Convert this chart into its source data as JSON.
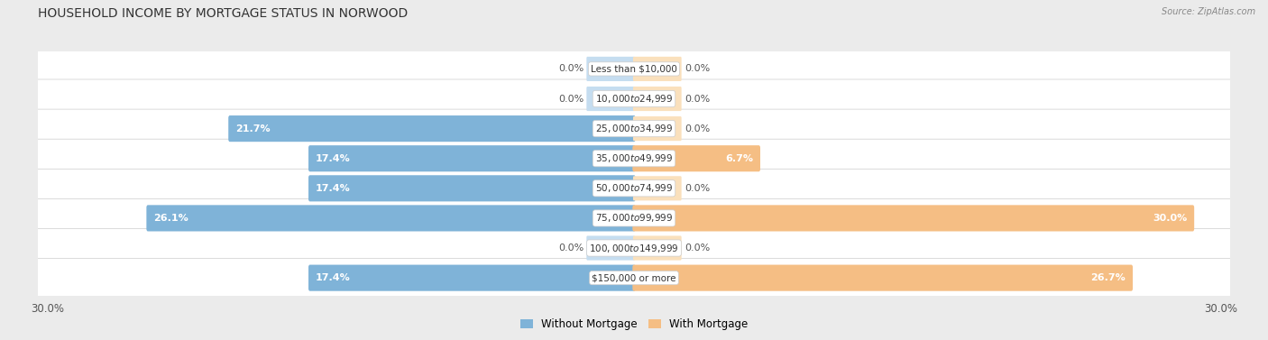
{
  "title": "HOUSEHOLD INCOME BY MORTGAGE STATUS IN NORWOOD",
  "source": "Source: ZipAtlas.com",
  "categories": [
    "Less than $10,000",
    "$10,000 to $24,999",
    "$25,000 to $34,999",
    "$35,000 to $49,999",
    "$50,000 to $74,999",
    "$75,000 to $99,999",
    "$100,000 to $149,999",
    "$150,000 or more"
  ],
  "without_mortgage": [
    0.0,
    0.0,
    21.7,
    17.4,
    17.4,
    26.1,
    0.0,
    17.4
  ],
  "with_mortgage": [
    0.0,
    0.0,
    0.0,
    6.7,
    0.0,
    30.0,
    0.0,
    26.7
  ],
  "max_val": 30.0,
  "color_without": "#7fb3d8",
  "color_with": "#f5be84",
  "color_without_faint": "#c5ddf0",
  "color_with_faint": "#fae0bc",
  "bg_color": "#ebebeb",
  "row_bg_light": "#f5f5f5",
  "row_bg_dark": "#e0e0e0",
  "title_fontsize": 10,
  "label_fontsize": 8,
  "axis_label_fontsize": 8.5,
  "legend_fontsize": 8.5,
  "cat_label_fontsize": 7.5
}
